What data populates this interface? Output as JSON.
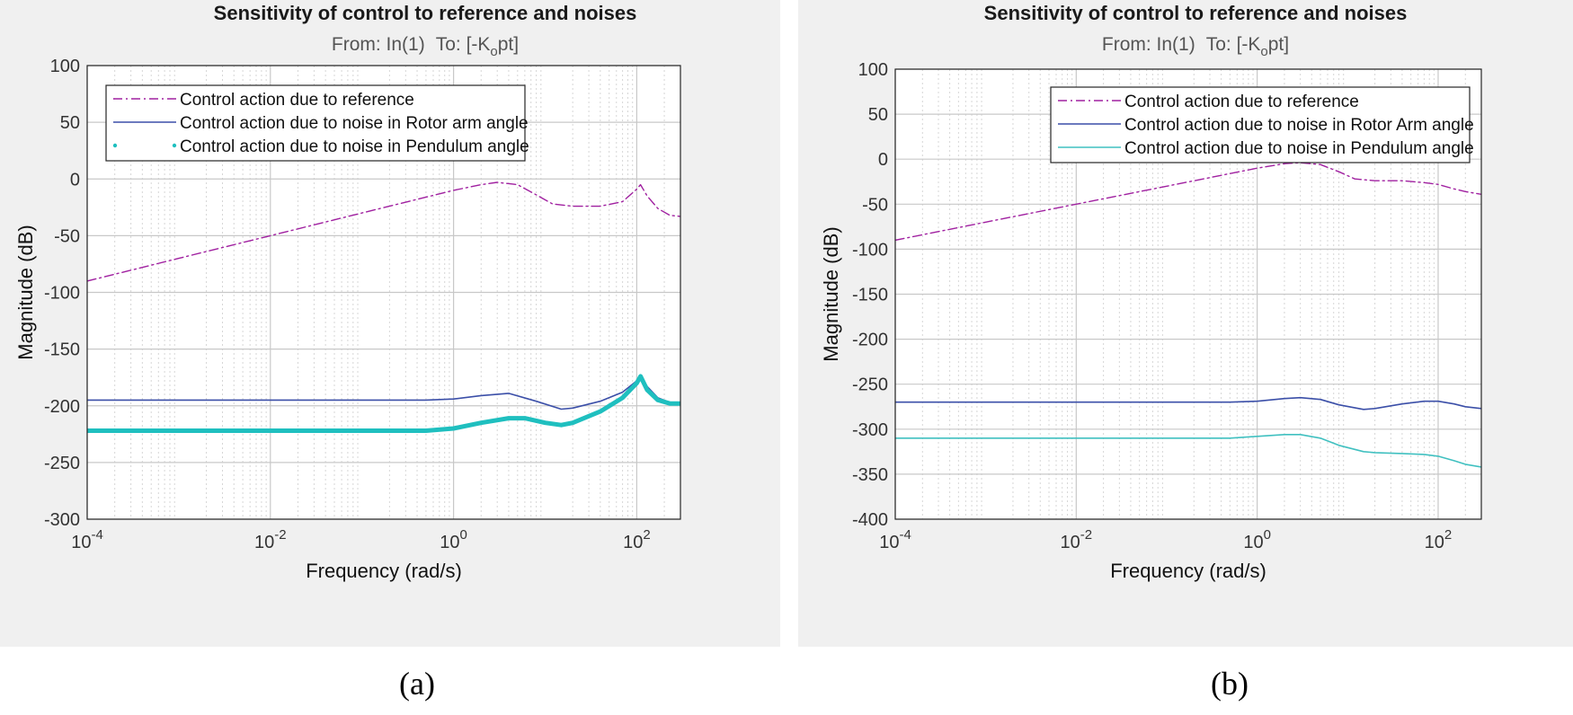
{
  "captions": {
    "a": "(a)",
    "b": "(b)"
  },
  "chart_data": [
    {
      "type": "line",
      "panel": "a",
      "title": "Sensitivity of control to reference and noises",
      "subtitle_from": "From: In(1)",
      "subtitle_to_prefix": "To: [-K",
      "subtitle_to_sub": "o",
      "subtitle_to_suffix": "pt]",
      "xlabel": "Frequency  (rad/s)",
      "ylabel": "Magnitude (dB)",
      "xscale": "log",
      "xlim": [
        0.0001,
        300
      ],
      "ylim": [
        -300,
        100
      ],
      "grid": true,
      "legend_position": "top-left",
      "yticks": [
        "100",
        "50",
        "0",
        "-50",
        "-100",
        "-150",
        "-200",
        "-250",
        "-300"
      ],
      "xticks": [
        {
          "base": "10",
          "exp": "-4"
        },
        {
          "base": "10",
          "exp": "-2"
        },
        {
          "base": "10",
          "exp": "0"
        },
        {
          "base": "10",
          "exp": "2"
        }
      ],
      "series": [
        {
          "name": "Control action due to reference",
          "style": "dashdot",
          "color": "#a020a0",
          "x": [
            0.0001,
            0.001,
            0.01,
            0.1,
            1,
            2,
            3,
            5,
            8,
            12,
            20,
            40,
            70,
            100,
            110,
            130,
            170,
            230,
            300
          ],
          "y": [
            -90,
            -70,
            -50,
            -30,
            -10,
            -5,
            -3,
            -5,
            -14,
            -22,
            -24,
            -24,
            -20,
            -9,
            -5,
            -15,
            -26,
            -32,
            -33
          ]
        },
        {
          "name": "Control action due to noise in Rotor arm angle",
          "style": "solid",
          "color": "#3b4fa8",
          "x": [
            0.0001,
            0.01,
            0.1,
            0.5,
            1,
            2,
            4,
            8,
            15,
            20,
            40,
            70,
            100,
            110,
            130,
            170,
            230,
            300
          ],
          "y": [
            -195,
            -195,
            -195,
            -195,
            -194,
            -191,
            -189,
            -196,
            -203,
            -202,
            -196,
            -188,
            -178,
            -173,
            -183,
            -193,
            -197,
            -198
          ]
        },
        {
          "name": "Control action due to noise in Pendulum angle",
          "style": "dotted-thick",
          "color": "#1fbfbf",
          "x": [
            0.0001,
            0.01,
            0.1,
            0.5,
            1,
            2,
            4,
            6,
            10,
            15,
            20,
            40,
            70,
            100,
            110,
            130,
            170,
            230,
            300
          ],
          "y": [
            -222,
            -222,
            -222,
            -222,
            -220,
            -215,
            -211,
            -211,
            -215,
            -217,
            -215,
            -205,
            -193,
            -180,
            -174,
            -186,
            -195,
            -198,
            -198
          ]
        }
      ]
    },
    {
      "type": "line",
      "panel": "b",
      "title": "Sensitivity of control to reference and noises",
      "subtitle_from": "From: In(1)",
      "subtitle_to_prefix": "To: [-K",
      "subtitle_to_sub": "o",
      "subtitle_to_suffix": "pt]",
      "xlabel": "Frequency  (rad/s)",
      "ylabel": "Magnitude (dB)",
      "xscale": "log",
      "xlim": [
        0.0001,
        300
      ],
      "ylim": [
        -400,
        100
      ],
      "grid": true,
      "legend_position": "top-right",
      "yticks": [
        "100",
        "50",
        "0",
        "-50",
        "-100",
        "-150",
        "-200",
        "-250",
        "-300",
        "-350",
        "-400"
      ],
      "xticks": [
        {
          "base": "10",
          "exp": "-4"
        },
        {
          "base": "10",
          "exp": "-2"
        },
        {
          "base": "10",
          "exp": "0"
        },
        {
          "base": "10",
          "exp": "2"
        }
      ],
      "series": [
        {
          "name": "Control action due to reference",
          "style": "dashdot",
          "color": "#a020a0",
          "x": [
            0.0001,
            0.001,
            0.01,
            0.1,
            1,
            2,
            3,
            5,
            8,
            12,
            20,
            40,
            70,
            100,
            150,
            200,
            300
          ],
          "y": [
            -90,
            -70,
            -50,
            -30,
            -10,
            -5,
            -4,
            -6,
            -14,
            -22,
            -24,
            -24,
            -26,
            -28,
            -33,
            -36,
            -39
          ]
        },
        {
          "name": "Control action due to noise in Rotor Arm angle",
          "style": "solid",
          "color": "#3b4fa8",
          "x": [
            0.0001,
            0.01,
            0.1,
            0.5,
            1,
            2,
            3,
            5,
            8,
            15,
            20,
            40,
            70,
            100,
            150,
            200,
            300
          ],
          "y": [
            -270,
            -270,
            -270,
            -270,
            -269,
            -266,
            -265,
            -267,
            -273,
            -278,
            -277,
            -272,
            -269,
            -269,
            -272,
            -275,
            -277
          ]
        },
        {
          "name": "Control action due to noise in Pendulum angle",
          "style": "solid",
          "color": "#40c0c0",
          "x": [
            0.0001,
            0.01,
            0.1,
            0.5,
            1,
            2,
            3,
            5,
            8,
            15,
            20,
            40,
            70,
            100,
            150,
            200,
            300
          ],
          "y": [
            -310,
            -310,
            -310,
            -310,
            -308,
            -306,
            -306,
            -310,
            -318,
            -325,
            -326,
            -327,
            -328,
            -330,
            -335,
            -339,
            -342
          ]
        }
      ]
    }
  ]
}
